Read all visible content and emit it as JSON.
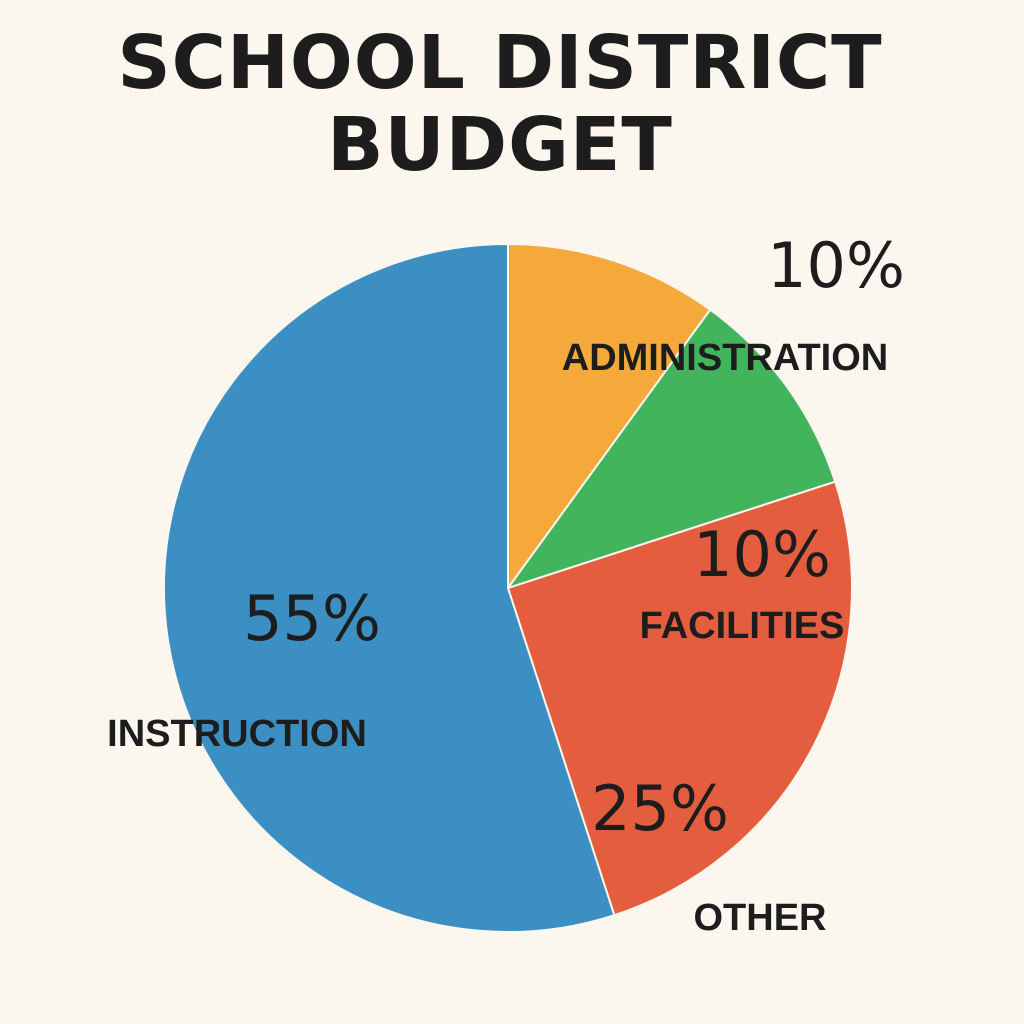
{
  "chart_data": {
    "type": "pie",
    "title": "SCHOOL DISTRICT BUDGET",
    "title_lines": [
      "SCHOOL DISTRICT",
      "BUDGET"
    ],
    "slices": [
      {
        "label": "INSTRUCTION",
        "value": 55,
        "value_label": "55%",
        "color": "#3b8fc3"
      },
      {
        "label": "ADMINISTRATION",
        "value": 10,
        "value_label": "10%",
        "color": "#f6a93b"
      },
      {
        "label": "FACILITIES",
        "value": 10,
        "value_label": "10%",
        "color": "#41b45c"
      },
      {
        "label": "OTHER",
        "value": 25,
        "value_label": "25%",
        "color": "#e45d3f"
      }
    ]
  }
}
